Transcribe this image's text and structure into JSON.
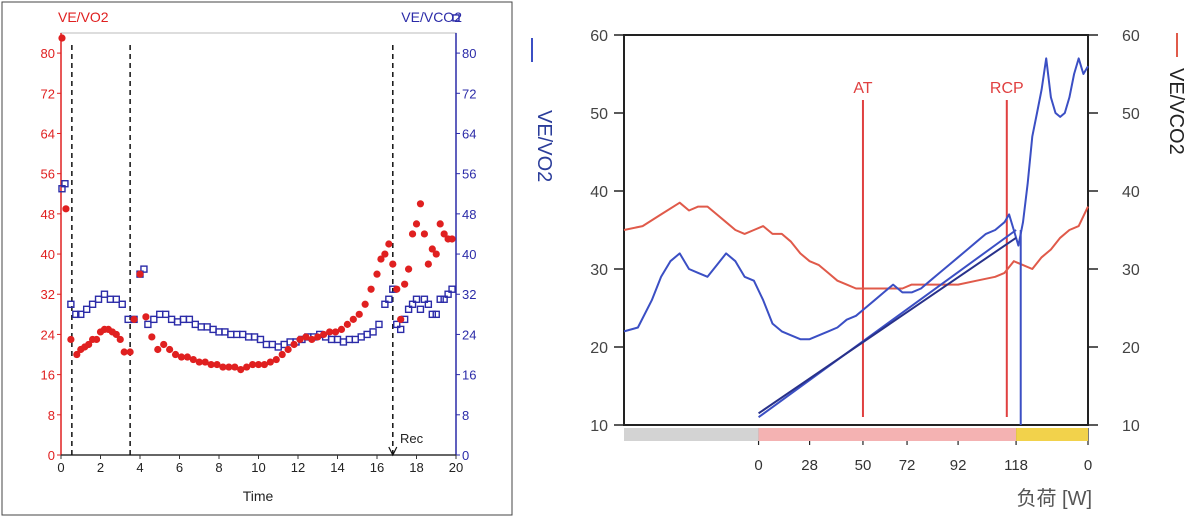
{
  "charts": [
    {
      "type": "scatter",
      "left_label": "VE/VO2",
      "right_label": "VE/VCO2",
      "xlabel": "Time",
      "xlim": [
        0,
        20
      ],
      "ylim": [
        0,
        84
      ],
      "xticks": [
        "0",
        "2",
        "4",
        "6",
        "8",
        "10",
        "12",
        "14",
        "16",
        "18",
        "20"
      ],
      "yticks": [
        "0",
        "8",
        "16",
        "24",
        "32",
        "40",
        "48",
        "56",
        "64",
        "72",
        "80"
      ],
      "vlines": [
        0.55,
        3.5,
        16.8
      ],
      "vline_label": "Rec",
      "colors": {
        "ve_vo2": "#e02020",
        "ve_vco2": "#2b2ba8"
      },
      "series": [
        {
          "name": "VE/VO2",
          "x": [
            0.05,
            0.25,
            0.5,
            0.8,
            1,
            1.2,
            1.4,
            1.6,
            1.8,
            2,
            2.2,
            2.4,
            2.6,
            2.8,
            3,
            3.2,
            3.5,
            3.7,
            4,
            4.3,
            4.6,
            4.9,
            5.2,
            5.5,
            5.8,
            6.1,
            6.4,
            6.7,
            7,
            7.3,
            7.6,
            7.9,
            8.2,
            8.5,
            8.8,
            9.1,
            9.4,
            9.7,
            10,
            10.3,
            10.6,
            10.9,
            11.2,
            11.5,
            11.8,
            12.1,
            12.4,
            12.7,
            13,
            13.3,
            13.6,
            13.9,
            14.2,
            14.5,
            14.8,
            15.1,
            15.4,
            15.7,
            16,
            16.2,
            16.4,
            16.6,
            16.8,
            17,
            17.2,
            17.4,
            17.6,
            17.8,
            18,
            18.2,
            18.4,
            18.6,
            18.8,
            19,
            19.2,
            19.4,
            19.6,
            19.8
          ],
          "y": [
            83,
            49,
            23,
            20,
            21,
            21.5,
            22,
            23,
            23,
            24.5,
            25,
            25,
            24.5,
            24,
            23,
            20.5,
            20.5,
            27,
            36,
            27.5,
            23.5,
            21,
            22,
            21,
            20,
            19.5,
            19.5,
            19,
            18.5,
            18.5,
            18,
            18,
            17.5,
            17.5,
            17.5,
            17,
            17.5,
            18,
            18,
            18,
            18.5,
            19,
            20,
            21,
            22,
            23,
            23.5,
            23,
            23.5,
            24,
            24.5,
            24.5,
            25,
            26,
            27,
            28,
            30,
            33,
            36,
            39,
            40,
            42,
            38,
            33,
            27,
            34,
            37,
            44,
            46,
            50,
            44,
            38,
            41,
            40,
            46,
            44,
            43,
            43
          ]
        },
        {
          "name": "VE/VCO2",
          "x": [
            0.05,
            0.2,
            0.5,
            0.75,
            1,
            1.3,
            1.6,
            1.9,
            2.2,
            2.5,
            2.8,
            3.1,
            3.4,
            3.7,
            4,
            4.2,
            4.4,
            4.7,
            5,
            5.3,
            5.6,
            5.9,
            6.2,
            6.5,
            6.8,
            7.1,
            7.4,
            7.7,
            8,
            8.3,
            8.6,
            8.9,
            9.2,
            9.5,
            9.8,
            10.1,
            10.4,
            10.7,
            11,
            11.3,
            11.6,
            11.9,
            12.2,
            12.5,
            12.8,
            13.1,
            13.4,
            13.7,
            14,
            14.3,
            14.6,
            14.9,
            15.2,
            15.5,
            15.8,
            16.1,
            16.4,
            16.6,
            16.8,
            17,
            17.2,
            17.4,
            17.6,
            17.8,
            18,
            18.2,
            18.4,
            18.6,
            18.8,
            19,
            19.2,
            19.4,
            19.6,
            19.8,
            20
          ],
          "y": [
            53,
            54,
            30,
            28,
            28,
            29,
            30,
            31,
            32,
            31,
            31,
            30,
            27,
            27,
            36,
            37,
            26,
            27,
            28,
            28,
            27,
            26.5,
            27,
            27,
            26,
            25.5,
            25.5,
            25,
            24.5,
            24.5,
            24,
            24,
            24,
            23.5,
            23.5,
            23,
            22,
            22,
            21.5,
            22,
            22.5,
            22.5,
            23,
            23.5,
            23.5,
            24,
            23.5,
            23,
            23,
            22.5,
            23,
            23,
            23.5,
            24,
            24.5,
            26,
            30,
            31,
            33,
            26,
            25,
            27,
            29,
            30,
            31,
            29,
            31,
            30,
            28,
            28,
            31,
            31,
            32,
            33,
            87
          ]
        }
      ]
    },
    {
      "type": "line",
      "left_label": "VE/VO2",
      "right_label": "VE/VCO2",
      "xlabel": "负荷 [W]",
      "ylim": [
        10,
        60
      ],
      "yticks": [
        "10",
        "20",
        "30",
        "40",
        "50",
        "60"
      ],
      "xticks": [
        {
          "label": "0",
          "x": 0.29
        },
        {
          "label": "28",
          "x": 0.4
        },
        {
          "label": "50",
          "x": 0.515
        },
        {
          "label": "72",
          "x": 0.61
        },
        {
          "label": "92",
          "x": 0.72
        },
        {
          "label": "118",
          "x": 0.845
        },
        {
          "label": "0",
          "x": 1.0
        }
      ],
      "markers": [
        {
          "label": "AT",
          "x": 0.515
        },
        {
          "label": "RCP",
          "x": 0.825
        }
      ],
      "phase_bar": [
        {
          "from": 0,
          "to": 0.29,
          "color": "#d3d3d3"
        },
        {
          "from": 0.29,
          "to": 0.845,
          "color": "#f4b2b2"
        },
        {
          "from": 0.845,
          "to": 1.0,
          "color": "#f2d24b"
        }
      ],
      "colors": {
        "ve_vo2": "#3b4fc4",
        "ve_vco2": "#e05a4a"
      },
      "series": [
        {
          "name": "VE/VO2",
          "x": [
            0,
            0.03,
            0.06,
            0.08,
            0.1,
            0.12,
            0.14,
            0.16,
            0.18,
            0.2,
            0.22,
            0.24,
            0.26,
            0.28,
            0.3,
            0.32,
            0.34,
            0.36,
            0.38,
            0.4,
            0.42,
            0.44,
            0.46,
            0.48,
            0.5,
            0.52,
            0.54,
            0.56,
            0.58,
            0.6,
            0.62,
            0.64,
            0.66,
            0.68,
            0.7,
            0.72,
            0.74,
            0.76,
            0.78,
            0.8,
            0.82,
            0.83,
            0.84,
            0.85,
            0.86,
            0.87,
            0.88,
            0.89,
            0.9,
            0.91,
            0.92,
            0.93,
            0.94,
            0.95,
            0.96,
            0.97,
            0.98,
            0.99,
            1.0
          ],
          "y": [
            22,
            22.5,
            26,
            29,
            31,
            32,
            30,
            29.5,
            29,
            30.5,
            32,
            31,
            29,
            28.5,
            26,
            23,
            22,
            21.5,
            21,
            21,
            21.5,
            22,
            22.5,
            23.5,
            24,
            25,
            26,
            27,
            28,
            27,
            27,
            27.5,
            28.5,
            29.5,
            30.5,
            31.5,
            32.5,
            33.5,
            34.5,
            35,
            36,
            37,
            35,
            33,
            36,
            41,
            47,
            50,
            53,
            57,
            52,
            50,
            49.5,
            50,
            52,
            55,
            57,
            55,
            56
          ]
        },
        {
          "name": "VE/VCO2",
          "x": [
            0,
            0.04,
            0.08,
            0.12,
            0.14,
            0.16,
            0.18,
            0.2,
            0.22,
            0.24,
            0.26,
            0.28,
            0.3,
            0.32,
            0.34,
            0.36,
            0.38,
            0.4,
            0.42,
            0.44,
            0.46,
            0.48,
            0.5,
            0.52,
            0.55,
            0.58,
            0.6,
            0.62,
            0.65,
            0.68,
            0.72,
            0.76,
            0.8,
            0.82,
            0.84,
            0.86,
            0.88,
            0.9,
            0.92,
            0.94,
            0.96,
            0.98,
            1.0
          ],
          "y": [
            35,
            35.5,
            37,
            38.5,
            37.5,
            38,
            38,
            37,
            36,
            35,
            34.5,
            35,
            35.5,
            34.5,
            34.5,
            33.5,
            32,
            31,
            30.5,
            29.5,
            28.5,
            28,
            27.5,
            27.5,
            27.5,
            27.5,
            27.5,
            28,
            28,
            28,
            28,
            28.5,
            29,
            29.5,
            31,
            30.5,
            30,
            31.5,
            32.5,
            34,
            35,
            35.5,
            38
          ]
        },
        {
          "name": "",
          "x": [
            0.29,
            0.845
          ],
          "y": [
            11,
            35
          ]
        },
        {
          "name": "",
          "x": [
            0.29,
            0.845
          ],
          "y": [
            11.5,
            34
          ]
        }
      ]
    }
  ]
}
